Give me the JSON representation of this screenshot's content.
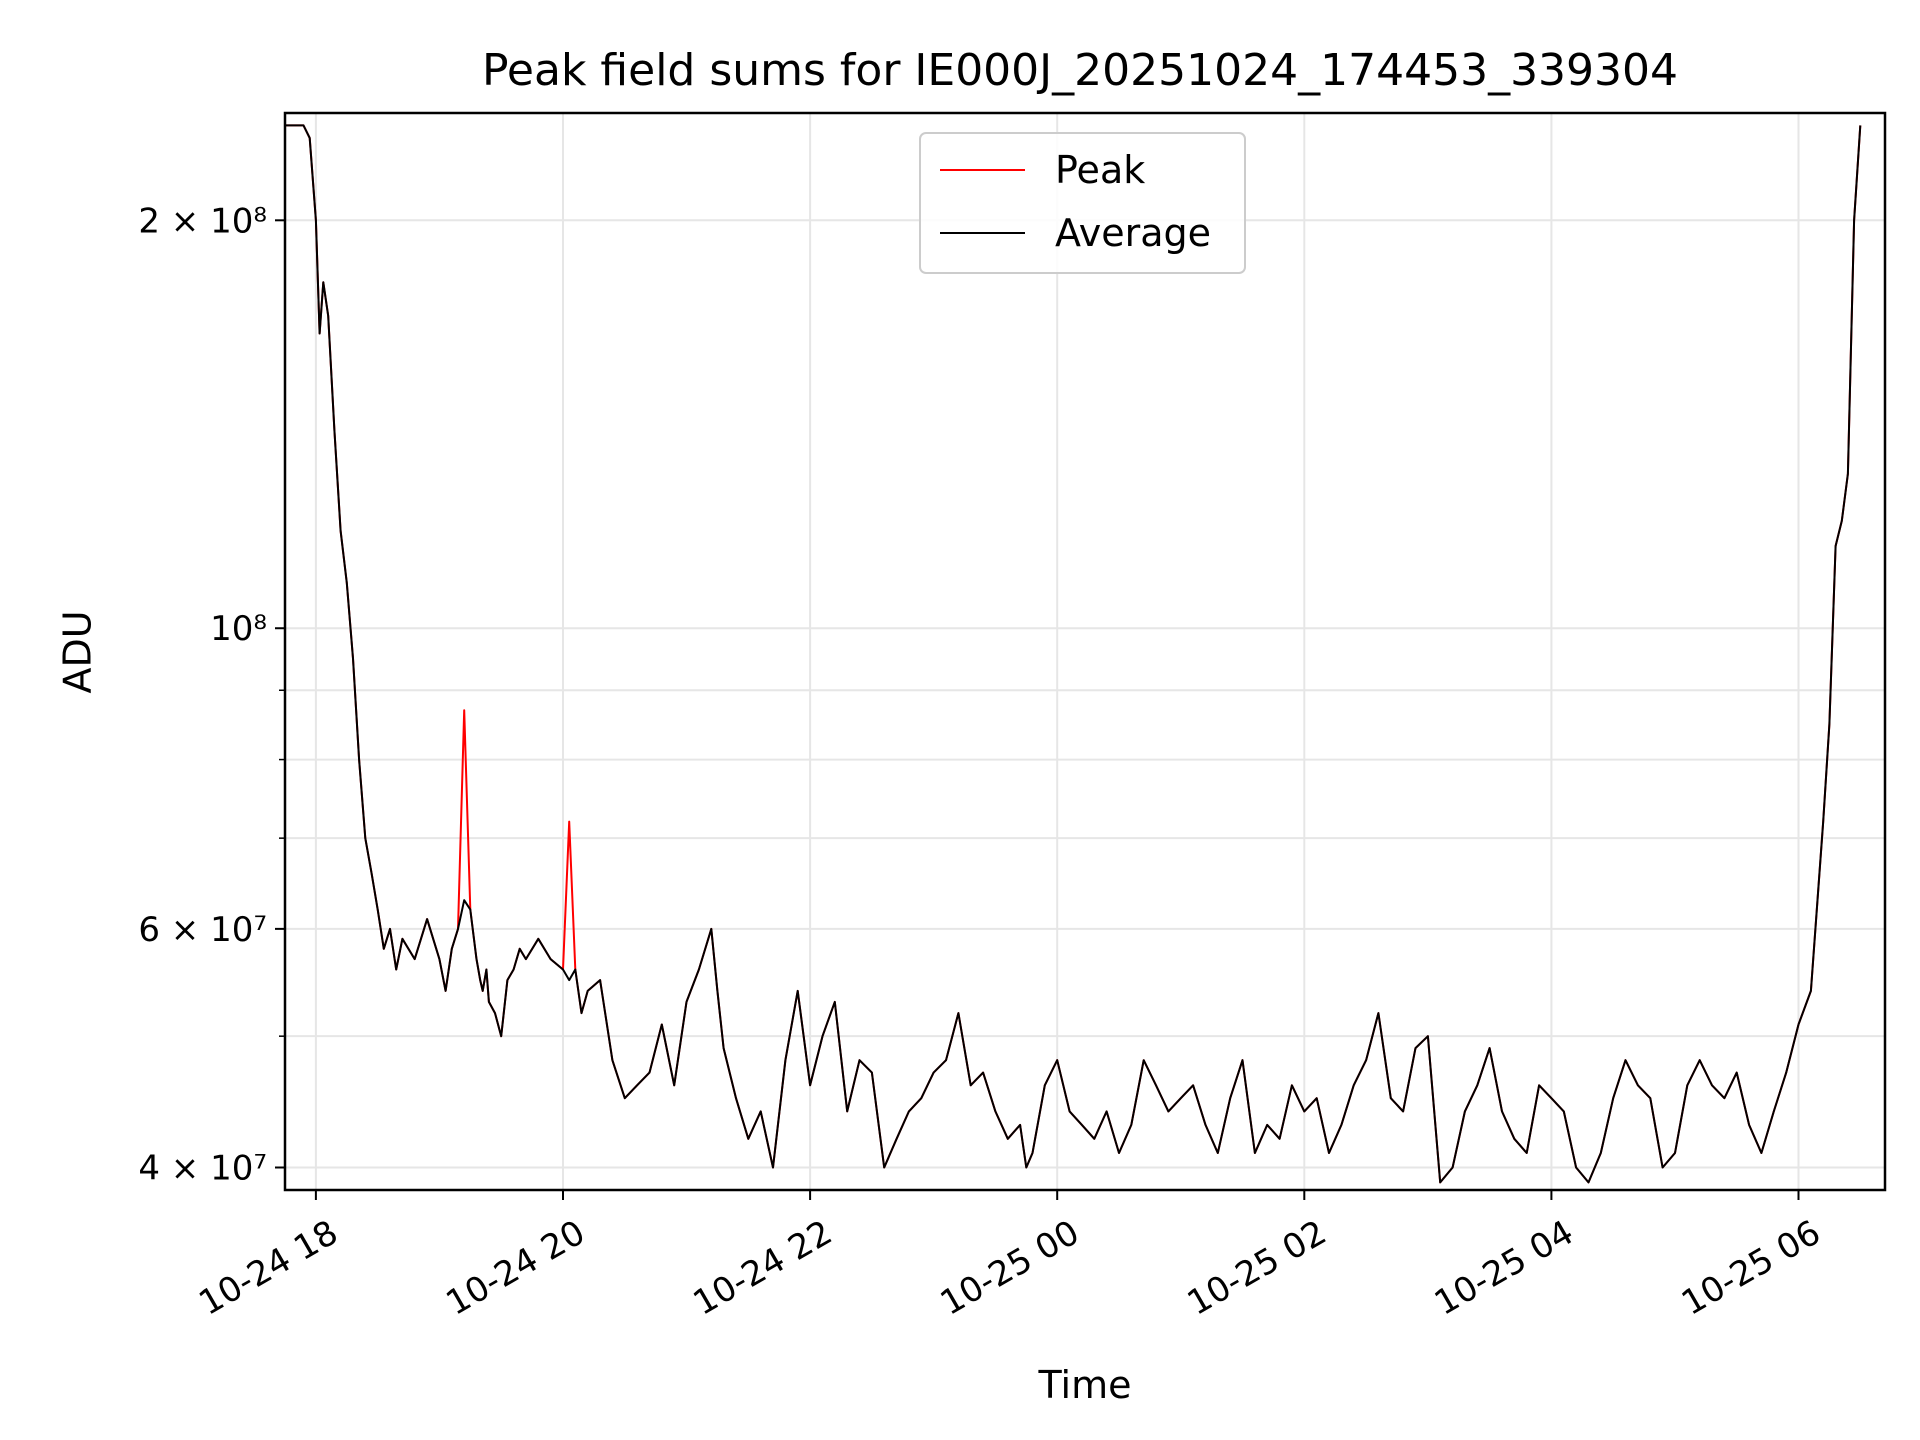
{
  "chart_data": {
    "type": "line",
    "title": "Peak field sums for IE000J_20251024_174453_339304",
    "xlabel": "Time",
    "ylabel": "ADU",
    "yscale": "log",
    "xlim_hours_from_1024_18": [
      -0.25,
      12.7
    ],
    "ylim": [
      38500000,
      240000000
    ],
    "grid": true,
    "legend_position": "top-center",
    "x_ticks": [
      {
        "h": 0,
        "label": "10-24 18"
      },
      {
        "h": 2,
        "label": "10-24 20"
      },
      {
        "h": 4,
        "label": "10-24 22"
      },
      {
        "h": 6,
        "label": "10-25 00"
      },
      {
        "h": 8,
        "label": "10-25 02"
      },
      {
        "h": 10,
        "label": "10-25 04"
      },
      {
        "h": 12,
        "label": "10-25 06"
      }
    ],
    "y_ticks_major": [
      {
        "value": 40000000,
        "label": "4 × 10⁷"
      },
      {
        "value": 60000000,
        "label": "6 × 10⁷"
      },
      {
        "value": 100000000,
        "label": "10⁸"
      },
      {
        "value": 200000000,
        "label": "2 × 10⁸"
      }
    ],
    "y_gridlines_minor": [
      50000000,
      70000000,
      80000000,
      90000000
    ],
    "series": [
      {
        "name": "Peak",
        "color": "#ff0000",
        "x_hours": [
          -0.25,
          -0.1,
          -0.05,
          0.0,
          0.03,
          0.06,
          0.1,
          0.15,
          0.2,
          0.25,
          0.3,
          0.35,
          0.4,
          0.45,
          0.5,
          0.55,
          0.6,
          0.65,
          0.7,
          0.8,
          0.9,
          1.0,
          1.05,
          1.1,
          1.15,
          1.2,
          1.25,
          1.3,
          1.33,
          1.35,
          1.38,
          1.4,
          1.45,
          1.5,
          1.55,
          1.6,
          1.65,
          1.7,
          1.8,
          1.9,
          2.0,
          2.05,
          2.1,
          2.15,
          2.2,
          2.3,
          2.4,
          2.5,
          2.6,
          2.7,
          2.8,
          2.9,
          3.0,
          3.1,
          3.2,
          3.25,
          3.3,
          3.4,
          3.5,
          3.6,
          3.7,
          3.8,
          3.9,
          4.0,
          4.1,
          4.2,
          4.3,
          4.4,
          4.5,
          4.6,
          4.7,
          4.8,
          4.9,
          5.0,
          5.1,
          5.2,
          5.3,
          5.4,
          5.5,
          5.6,
          5.7,
          5.75,
          5.8,
          5.9,
          6.0,
          6.1,
          6.2,
          6.3,
          6.4,
          6.5,
          6.6,
          6.7,
          6.8,
          6.9,
          7.0,
          7.1,
          7.2,
          7.3,
          7.4,
          7.5,
          7.6,
          7.7,
          7.8,
          7.9,
          8.0,
          8.1,
          8.2,
          8.3,
          8.4,
          8.5,
          8.6,
          8.7,
          8.8,
          8.9,
          9.0,
          9.1,
          9.2,
          9.3,
          9.4,
          9.5,
          9.6,
          9.7,
          9.8,
          9.9,
          10.0,
          10.1,
          10.2,
          10.3,
          10.4,
          10.5,
          10.6,
          10.7,
          10.8,
          10.9,
          11.0,
          11.1,
          11.2,
          11.3,
          11.4,
          11.5,
          11.6,
          11.7,
          11.8,
          11.9,
          12.0,
          12.1,
          12.2,
          12.25,
          12.3,
          12.35,
          12.4,
          12.45,
          12.5
        ],
        "values_millions": [
          235,
          235,
          230,
          200,
          165,
          180,
          170,
          140,
          118,
          108,
          95,
          80,
          70,
          66,
          62,
          58,
          60,
          56,
          59,
          57,
          61,
          57,
          54,
          58,
          60,
          87,
          62,
          57,
          55,
          54,
          56,
          53,
          52,
          50,
          55,
          56,
          58,
          57,
          59,
          57,
          56,
          72,
          56,
          52,
          54,
          55,
          48,
          45,
          46,
          47,
          51,
          46,
          53,
          56,
          60,
          54,
          49,
          45,
          42,
          44,
          40,
          48,
          54,
          46,
          50,
          53,
          44,
          48,
          47,
          40,
          42,
          44,
          45,
          47,
          48,
          52,
          46,
          47,
          44,
          42,
          43,
          40,
          41,
          46,
          48,
          44,
          43,
          42,
          44,
          41,
          43,
          48,
          46,
          44,
          45,
          46,
          43,
          41,
          45,
          48,
          41,
          43,
          42,
          46,
          44,
          45,
          41,
          43,
          46,
          48,
          52,
          45,
          44,
          49,
          50,
          39,
          40,
          44,
          46,
          49,
          44,
          42,
          41,
          46,
          45,
          44,
          40,
          39,
          41,
          45,
          48,
          46,
          45,
          40,
          41,
          46,
          48,
          46,
          45,
          47,
          43,
          41,
          44,
          47,
          51,
          54,
          72,
          85,
          115,
          120,
          130,
          200,
          235
        ]
      },
      {
        "name": "Average",
        "color": "#000000",
        "x_hours": [
          -0.25,
          -0.1,
          -0.05,
          0.0,
          0.03,
          0.06,
          0.1,
          0.15,
          0.2,
          0.25,
          0.3,
          0.35,
          0.4,
          0.45,
          0.5,
          0.55,
          0.6,
          0.65,
          0.7,
          0.8,
          0.9,
          1.0,
          1.05,
          1.1,
          1.15,
          1.2,
          1.25,
          1.3,
          1.33,
          1.35,
          1.38,
          1.4,
          1.45,
          1.5,
          1.55,
          1.6,
          1.65,
          1.7,
          1.8,
          1.9,
          2.0,
          2.05,
          2.1,
          2.15,
          2.2,
          2.3,
          2.4,
          2.5,
          2.6,
          2.7,
          2.8,
          2.9,
          3.0,
          3.1,
          3.2,
          3.25,
          3.3,
          3.4,
          3.5,
          3.6,
          3.7,
          3.8,
          3.9,
          4.0,
          4.1,
          4.2,
          4.3,
          4.4,
          4.5,
          4.6,
          4.7,
          4.8,
          4.9,
          5.0,
          5.1,
          5.2,
          5.3,
          5.4,
          5.5,
          5.6,
          5.7,
          5.75,
          5.8,
          5.9,
          6.0,
          6.1,
          6.2,
          6.3,
          6.4,
          6.5,
          6.6,
          6.7,
          6.8,
          6.9,
          7.0,
          7.1,
          7.2,
          7.3,
          7.4,
          7.5,
          7.6,
          7.7,
          7.8,
          7.9,
          8.0,
          8.1,
          8.2,
          8.3,
          8.4,
          8.5,
          8.6,
          8.7,
          8.8,
          8.9,
          9.0,
          9.1,
          9.2,
          9.3,
          9.4,
          9.5,
          9.6,
          9.7,
          9.8,
          9.9,
          10.0,
          10.1,
          10.2,
          10.3,
          10.4,
          10.5,
          10.6,
          10.7,
          10.8,
          10.9,
          11.0,
          11.1,
          11.2,
          11.3,
          11.4,
          11.5,
          11.6,
          11.7,
          11.8,
          11.9,
          12.0,
          12.1,
          12.2,
          12.25,
          12.3,
          12.35,
          12.4,
          12.45,
          12.5
        ],
        "values_millions": [
          235,
          235,
          230,
          200,
          165,
          180,
          170,
          140,
          118,
          108,
          95,
          80,
          70,
          66,
          62,
          58,
          60,
          56,
          59,
          57,
          61,
          57,
          54,
          58,
          60,
          63,
          62,
          57,
          55,
          54,
          56,
          53,
          52,
          50,
          55,
          56,
          58,
          57,
          59,
          57,
          56,
          55,
          56,
          52,
          54,
          55,
          48,
          45,
          46,
          47,
          51,
          46,
          53,
          56,
          60,
          54,
          49,
          45,
          42,
          44,
          40,
          48,
          54,
          46,
          50,
          53,
          44,
          48,
          47,
          40,
          42,
          44,
          45,
          47,
          48,
          52,
          46,
          47,
          44,
          42,
          43,
          40,
          41,
          46,
          48,
          44,
          43,
          42,
          44,
          41,
          43,
          48,
          46,
          44,
          45,
          46,
          43,
          41,
          45,
          48,
          41,
          43,
          42,
          46,
          44,
          45,
          41,
          43,
          46,
          48,
          52,
          45,
          44,
          49,
          50,
          39,
          40,
          44,
          46,
          49,
          44,
          42,
          41,
          46,
          45,
          44,
          40,
          39,
          41,
          45,
          48,
          46,
          45,
          40,
          41,
          46,
          48,
          46,
          45,
          47,
          43,
          41,
          44,
          47,
          51,
          54,
          72,
          85,
          115,
          120,
          130,
          200,
          235
        ]
      }
    ]
  }
}
